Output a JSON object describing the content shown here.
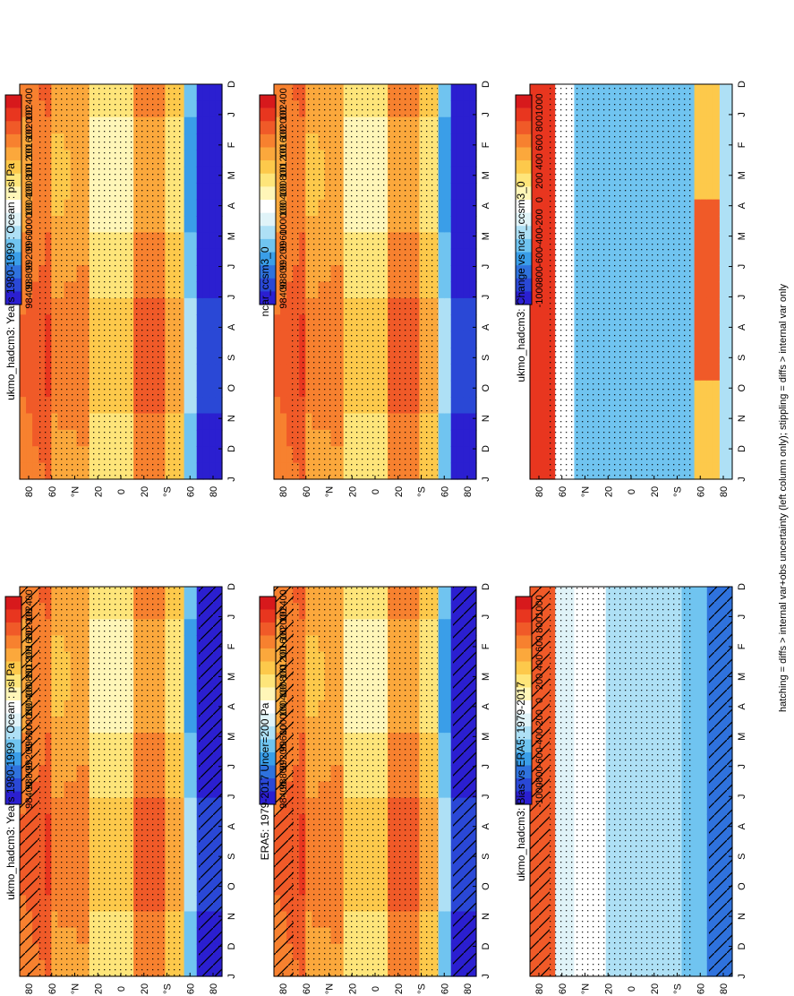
{
  "colors": {
    "pressure_scale": [
      "#d7191c",
      "#e8361f",
      "#f05a28",
      "#f7812f",
      "#fba83c",
      "#fdc94b",
      "#fee57a",
      "#fff6b8",
      "#ffffff",
      "#e0f3f8",
      "#aee0f5",
      "#70c4f0",
      "#3a9ee8",
      "#2f72dd",
      "#2a48d6",
      "#2b1fd0"
    ],
    "diff_scale": [
      "#d7191c",
      "#e8361f",
      "#f05a28",
      "#f7812f",
      "#fba83c",
      "#fdc94b",
      "#fee57a",
      "#fff6b8",
      "#ffffff",
      "#e0f3f8",
      "#aee0f5",
      "#70c4f0",
      "#3a9ee8",
      "#2f72dd",
      "#2a48d6",
      "#2b1fd0"
    ]
  },
  "footnote": "hatching = diffs > internal var+obs uncertainty (left column only); stippling = diffs > internal var only",
  "chart_data": [
    {
      "type": "heatmap",
      "title": "ukmo_hadcm3: Years 1980-1999 : Ocean : psl Pa",
      "months": [
        "D",
        "J",
        "F",
        "M",
        "A",
        "M",
        "J",
        "J",
        "A",
        "S",
        "O",
        "N",
        "D",
        "J"
      ],
      "lat_ticks": [
        "80",
        "60",
        "°N",
        "20",
        "0",
        "20",
        "°S",
        "60",
        "80"
      ],
      "colorbar_labels": [
        "102400",
        "102000",
        "101600",
        "101200",
        "100800",
        "100400",
        "100000",
        "99600",
        "99200",
        "98800",
        "98400"
      ],
      "hatching": true
    },
    {
      "type": "heatmap",
      "title": "ERA5: 1979-2017 Uncer=200 Pa",
      "months": [
        "D",
        "J",
        "F",
        "M",
        "A",
        "M",
        "J",
        "J",
        "A",
        "S",
        "O",
        "N",
        "D",
        "J"
      ],
      "lat_ticks": [
        "80",
        "60",
        "°N",
        "20",
        "0",
        "20",
        "°S",
        "60",
        "80"
      ],
      "colorbar_labels": [
        "102400",
        "102000",
        "101600",
        "101200",
        "100800",
        "100400",
        "100000",
        "99600",
        "99200",
        "98800",
        "98400"
      ],
      "hatching": true
    },
    {
      "type": "heatmap",
      "title": "ukmo_hadcm3: Bias vs ERA5: 1979-2017",
      "months": [
        "D",
        "J",
        "F",
        "M",
        "A",
        "M",
        "J",
        "J",
        "A",
        "S",
        "O",
        "N",
        "D",
        "J"
      ],
      "lat_ticks": [
        "80",
        "60",
        "°N",
        "20",
        "0",
        "20",
        "°S",
        "60",
        "80"
      ],
      "colorbar_labels": [
        "1000",
        "800",
        "600",
        "400",
        "200",
        "0",
        "-200",
        "-400",
        "-600",
        "-800",
        "-1000"
      ],
      "hatching": true
    },
    {
      "type": "heatmap",
      "title": "ukmo_hadcm3: Years 1980-1999 : Ocean : psl Pa",
      "months": [
        "D",
        "J",
        "F",
        "M",
        "A",
        "M",
        "J",
        "J",
        "A",
        "S",
        "O",
        "N",
        "D",
        "J"
      ],
      "lat_ticks": [
        "80",
        "60",
        "°N",
        "20",
        "0",
        "20",
        "°S",
        "60",
        "80"
      ],
      "colorbar_labels": [
        "102400",
        "102000",
        "101600",
        "101200",
        "100800",
        "100400",
        "100000",
        "99600",
        "99200",
        "98800",
        "98400"
      ],
      "hatching": false
    },
    {
      "type": "heatmap",
      "title": "ncar_ccsm3_0",
      "months": [
        "D",
        "J",
        "F",
        "M",
        "A",
        "M",
        "J",
        "J",
        "A",
        "S",
        "O",
        "N",
        "D",
        "J"
      ],
      "lat_ticks": [
        "80",
        "60",
        "°N",
        "20",
        "0",
        "20",
        "°S",
        "60",
        "80"
      ],
      "colorbar_labels": [
        "102400",
        "102000",
        "101600",
        "101200",
        "100800",
        "100400",
        "100000",
        "99600",
        "99200",
        "98800",
        "98400"
      ],
      "hatching": false
    },
    {
      "type": "heatmap",
      "title": "ukmo_hadcm3: Change vs ncar_ccsm3_0",
      "months": [
        "D",
        "J",
        "F",
        "M",
        "A",
        "M",
        "J",
        "J",
        "A",
        "S",
        "O",
        "N",
        "D",
        "J"
      ],
      "lat_ticks": [
        "80",
        "60",
        "°N",
        "20",
        "0",
        "20",
        "°S",
        "60",
        "80"
      ],
      "colorbar_labels": [
        "1000",
        "800",
        "600",
        "400",
        "200",
        "0",
        "-200",
        "-400",
        "-600",
        "-800",
        "-1000"
      ],
      "hatching": false
    }
  ]
}
